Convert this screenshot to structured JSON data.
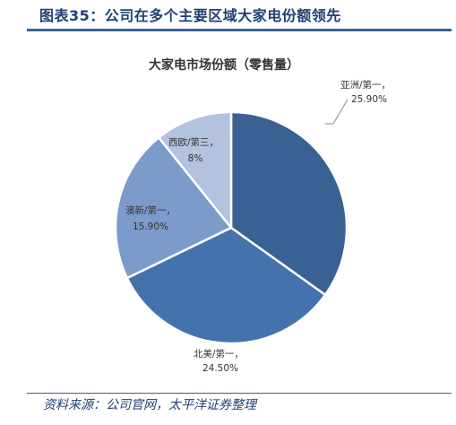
{
  "figure": {
    "title": "图表35：公司在多个主要区域大家电份额领先",
    "source": "资料来源：公司官网，太平洋证券整理"
  },
  "chart_data": {
    "type": "pie",
    "title": "大家电市场份额（零售量）",
    "slices": [
      {
        "label": "亚洲/第一，",
        "value_text": "25.90%",
        "value": 25.9,
        "color": "#3a6193"
      },
      {
        "label": "北美/第一，",
        "value_text": "24.50%",
        "value": 24.5,
        "color": "#4472ad"
      },
      {
        "label": "澳新/第一，",
        "value_text": "15.90%",
        "value": 15.9,
        "color": "#7b9bcb"
      },
      {
        "label": "西欧/第三，",
        "value_text": "8%",
        "value": 8,
        "color": "#b2c2df"
      }
    ],
    "legend": "none"
  }
}
